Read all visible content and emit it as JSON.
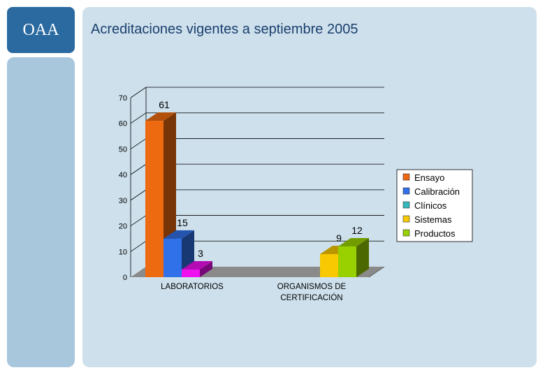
{
  "logo": {
    "text": "OAA"
  },
  "page": {
    "title": "Acreditaciones vigentes a septiembre 2005"
  },
  "chart_data": {
    "type": "bar",
    "categories": [
      [
        "LABORATORIOS"
      ],
      [
        "ORGANISMOS DE",
        "CERTIFICACIÓN"
      ]
    ],
    "ylim": [
      0,
      70
    ],
    "yticks": [
      0,
      10,
      20,
      30,
      40,
      50,
      60,
      70
    ],
    "grid": true,
    "legend_position": "right",
    "series": [
      {
        "name": "Ensayo",
        "values": [
          61,
          null
        ],
        "color": "#ee6a10"
      },
      {
        "name": "Calibración",
        "values": [
          15,
          null
        ],
        "color": "#3070e8"
      },
      {
        "name": "Clínicos",
        "values": [
          3,
          null
        ],
        "color": "#ee10ee",
        "legend_color": "#34b8bc"
      },
      {
        "name": "Sistemas",
        "values": [
          null,
          9
        ],
        "color": "#f8c800"
      },
      {
        "name": "Productos",
        "values": [
          null,
          12
        ],
        "color": "#98d000"
      }
    ]
  }
}
